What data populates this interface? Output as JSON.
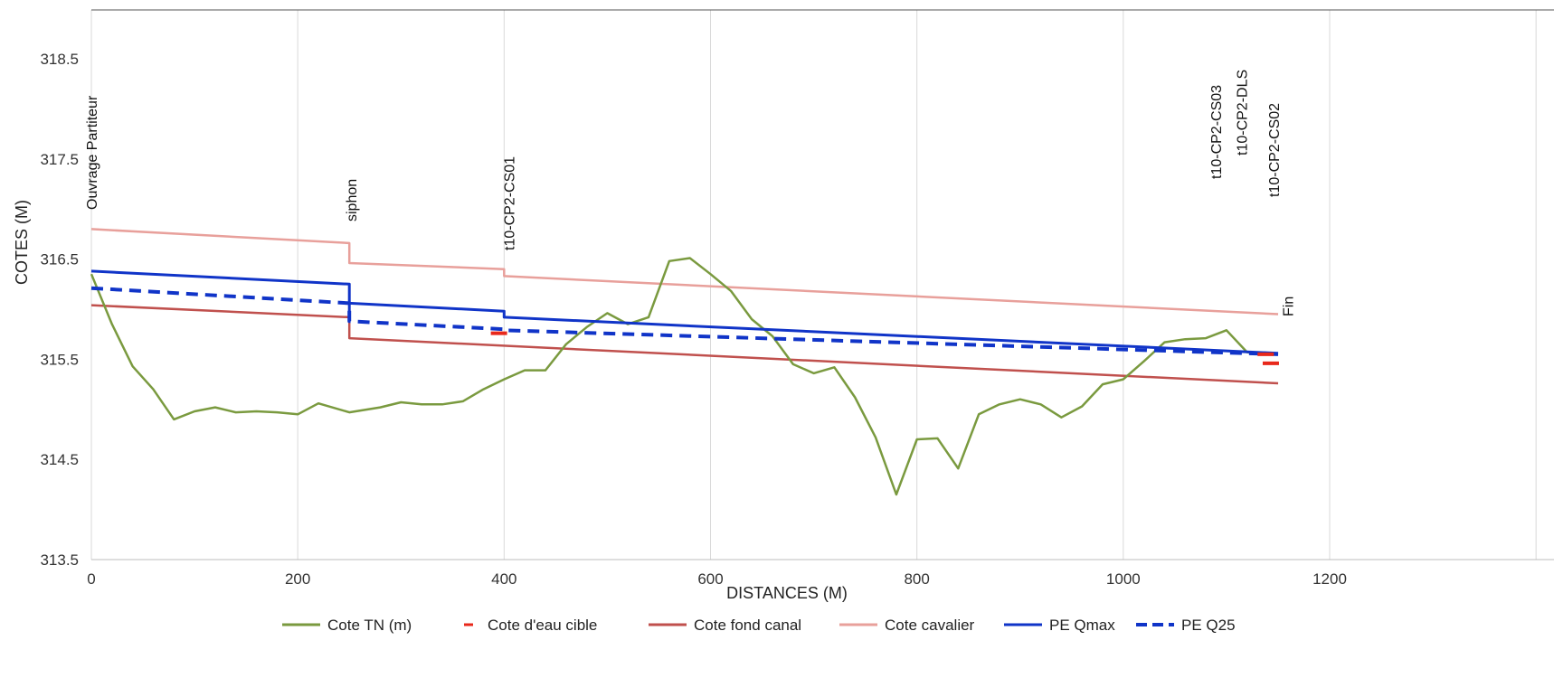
{
  "chart_data": {
    "type": "line",
    "title": "",
    "xlabel": "DISTANCES (M)",
    "ylabel": "COTES (M)",
    "xlim": [
      0,
      1290
    ],
    "ylim": [
      313.5,
      319
    ],
    "xticks": [
      0,
      200,
      400,
      600,
      800,
      1000,
      1200
    ],
    "yticks": [
      313.5,
      314.5,
      315.5,
      316.5,
      317.5,
      318.5
    ],
    "xtick_labels": [
      "0",
      "200",
      "400",
      "600",
      "800",
      "1000",
      "1200"
    ],
    "ytick_labels": [
      "313.5",
      "314.5",
      "315.5",
      "316.5",
      "317.5",
      "318.5"
    ],
    "grid": "vertical",
    "legend_position": "bottom",
    "series": [
      {
        "name": "Cote TN (m)",
        "color": "#7a9a3f",
        "style": "solid",
        "points": [
          [
            0,
            316.35
          ],
          [
            20,
            315.85
          ],
          [
            40,
            315.43
          ],
          [
            60,
            315.2
          ],
          [
            80,
            314.9
          ],
          [
            100,
            314.98
          ],
          [
            120,
            315.02
          ],
          [
            140,
            314.97
          ],
          [
            160,
            314.98
          ],
          [
            180,
            314.97
          ],
          [
            200,
            314.95
          ],
          [
            220,
            315.06
          ],
          [
            250,
            314.97
          ],
          [
            280,
            315.02
          ],
          [
            300,
            315.07
          ],
          [
            320,
            315.05
          ],
          [
            340,
            315.05
          ],
          [
            360,
            315.08
          ],
          [
            380,
            315.2
          ],
          [
            400,
            315.3
          ],
          [
            420,
            315.39
          ],
          [
            440,
            315.39
          ],
          [
            460,
            315.65
          ],
          [
            480,
            315.82
          ],
          [
            500,
            315.96
          ],
          [
            520,
            315.85
          ],
          [
            540,
            315.92
          ],
          [
            560,
            316.48
          ],
          [
            580,
            316.51
          ],
          [
            600,
            316.35
          ],
          [
            620,
            316.18
          ],
          [
            640,
            315.9
          ],
          [
            660,
            315.73
          ],
          [
            680,
            315.45
          ],
          [
            700,
            315.36
          ],
          [
            720,
            315.42
          ],
          [
            740,
            315.12
          ],
          [
            760,
            314.72
          ],
          [
            780,
            314.15
          ],
          [
            800,
            314.7
          ],
          [
            820,
            314.71
          ],
          [
            840,
            314.41
          ],
          [
            860,
            314.95
          ],
          [
            880,
            315.05
          ],
          [
            900,
            315.1
          ],
          [
            920,
            315.05
          ],
          [
            940,
            314.92
          ],
          [
            960,
            315.03
          ],
          [
            980,
            315.25
          ],
          [
            1000,
            315.3
          ],
          [
            1020,
            315.48
          ],
          [
            1040,
            315.67
          ],
          [
            1060,
            315.7
          ],
          [
            1080,
            315.71
          ],
          [
            1100,
            315.79
          ],
          [
            1120,
            315.57
          ],
          [
            1140,
            315.55
          ],
          [
            1150,
            315.55
          ]
        ]
      },
      {
        "name": "Cote d'eau cible",
        "color": "#e8281b",
        "style": "dash-marker",
        "points": [
          [
            395,
            315.76
          ],
          [
            1138,
            315.55
          ],
          [
            1143,
            315.46
          ]
        ]
      },
      {
        "name": "Cote fond canal",
        "color": "#c0504d",
        "style": "solid",
        "points": [
          [
            0,
            316.04
          ],
          [
            250,
            315.92
          ],
          [
            250,
            315.71
          ],
          [
            1150,
            315.26
          ]
        ]
      },
      {
        "name": "Cote cavalier",
        "color": "#e8a09b",
        "style": "solid",
        "points": [
          [
            0,
            316.8
          ],
          [
            250,
            316.66
          ],
          [
            250,
            316.46
          ],
          [
            400,
            316.4
          ],
          [
            400,
            316.33
          ],
          [
            1150,
            315.95
          ]
        ]
      },
      {
        "name": "PE Qmax",
        "color": "#1034c8",
        "style": "solid",
        "points": [
          [
            0,
            316.38
          ],
          [
            250,
            316.25
          ],
          [
            250,
            315.97
          ],
          [
            250,
            316.06
          ],
          [
            400,
            315.98
          ],
          [
            400,
            315.92
          ],
          [
            1150,
            315.56
          ]
        ]
      },
      {
        "name": "PE Q25",
        "color": "#1034c8",
        "style": "dashed",
        "points": [
          [
            0,
            316.21
          ],
          [
            250,
            316.06
          ],
          [
            250,
            315.88
          ],
          [
            400,
            315.8
          ],
          [
            400,
            315.79
          ],
          [
            1150,
            315.55
          ]
        ]
      }
    ],
    "annotations": [
      {
        "text": "Ouvrage Partiteur",
        "x": 0
      },
      {
        "text": "siphon",
        "x": 250
      },
      {
        "text": "t10-CP2-CS01",
        "x": 400
      },
      {
        "text": "t10-CP2-CS03",
        "x": 1100
      },
      {
        "text": "t10-CP2-DLS",
        "x": 1125
      },
      {
        "text": "t10-CP2-CS02",
        "x": 1150
      },
      {
        "text": "Fin",
        "x": 1160
      }
    ]
  }
}
